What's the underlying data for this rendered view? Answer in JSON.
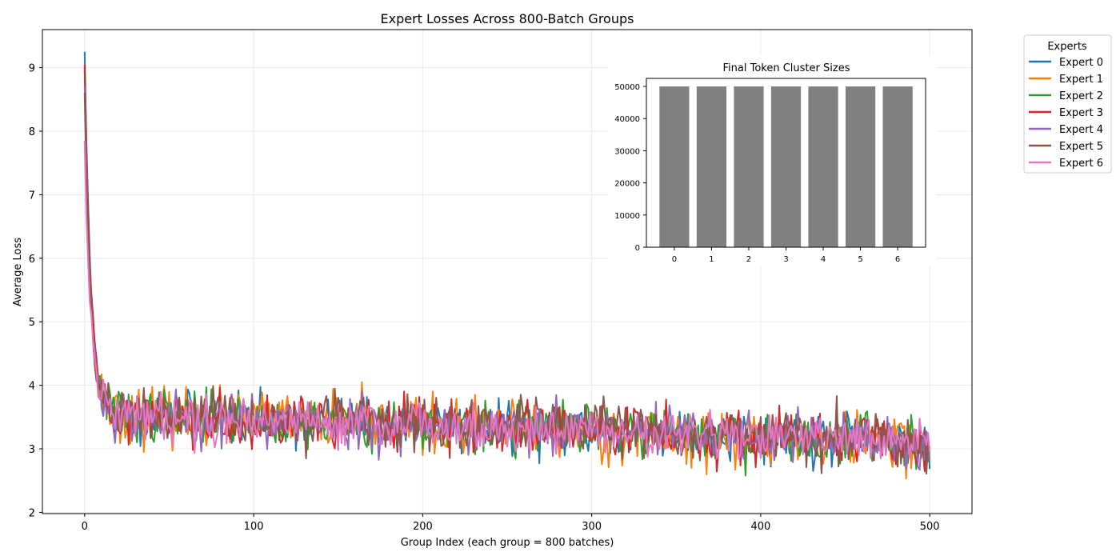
{
  "chart_data": [
    {
      "type": "line",
      "title": "Expert Losses Across 800-Batch Groups",
      "xlabel": "Group Index (each group = 800 batches)",
      "ylabel": "Average Loss",
      "xlim": [
        -25,
        525
      ],
      "ylim": [
        1.98,
        9.6
      ],
      "xticks": [
        0,
        100,
        200,
        300,
        400,
        500
      ],
      "yticks": [
        2,
        3,
        4,
        5,
        6,
        7,
        8,
        9
      ],
      "grid": true,
      "legend": {
        "title": "Experts",
        "placement": "outside-top-right"
      },
      "series": [
        {
          "name": "Expert 0",
          "color": "#1f77b4",
          "start": 9.25,
          "noise": 0.19,
          "seed": 11
        },
        {
          "name": "Expert 1",
          "color": "#ff7f0e",
          "start": 8.95,
          "noise": 0.21,
          "seed": 23
        },
        {
          "name": "Expert 2",
          "color": "#2ca02c",
          "start": 9.0,
          "noise": 0.2,
          "seed": 37
        },
        {
          "name": "Expert 3",
          "color": "#d62728",
          "start": 9.05,
          "noise": 0.2,
          "seed": 41
        },
        {
          "name": "Expert 4",
          "color": "#9467bd",
          "start": 8.7,
          "noise": 0.2,
          "seed": 53
        },
        {
          "name": "Expert 5",
          "color": "#8c564b",
          "start": 8.6,
          "noise": 0.2,
          "seed": 67
        },
        {
          "name": "Expert 6",
          "color": "#e377c2",
          "start": 7.85,
          "noise": 0.18,
          "seed": 79
        }
      ],
      "x_range": [
        0,
        500
      ],
      "trend": {
        "plateau_start": 3.55,
        "plateau_end": 3.1,
        "decay_rate": 0.28
      }
    },
    {
      "type": "bar",
      "title": "Final Token Cluster Sizes",
      "categories": [
        "0",
        "1",
        "2",
        "3",
        "4",
        "5",
        "6"
      ],
      "values": [
        50000,
        50000,
        50000,
        50000,
        50000,
        50000,
        50000
      ],
      "ylim": [
        0,
        52500
      ],
      "yticks": [
        0,
        10000,
        20000,
        30000,
        40000,
        50000
      ],
      "color": "#808080"
    }
  ]
}
